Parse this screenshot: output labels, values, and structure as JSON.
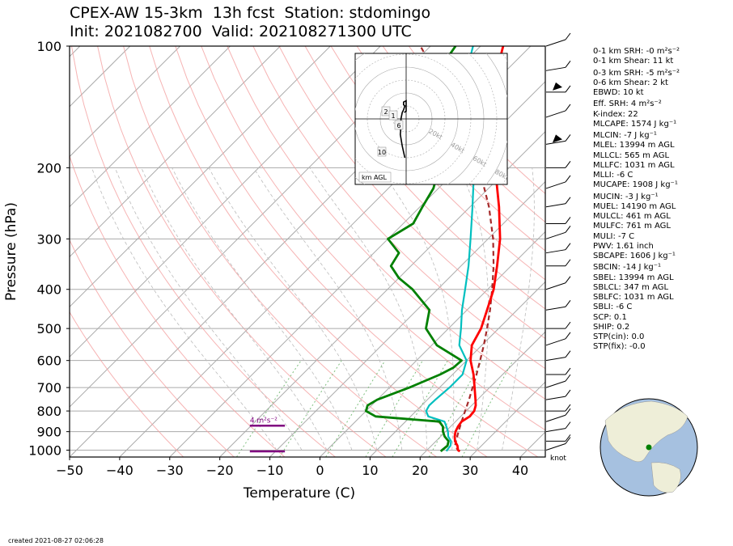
{
  "title_line1": "CPEX-AW 15-3km  13h fcst  Station: stdomingo",
  "title_line2": "Init: 2021082700  Valid: 202108271300 UTC",
  "created": "created 2021-08-27 02:06:28",
  "colors": {
    "temperature": "#ff0000",
    "dewpoint": "#008000",
    "wetbulb": "#00bfbf",
    "parcel": "#a52a2a",
    "srh_marker": "#800080",
    "dry_adiabat": "#f4a0a0",
    "isotherm": "#aaaaaa",
    "mixing_ratio": "#7fbf7f"
  },
  "chart_data": {
    "type": "skew-t",
    "xlabel": "Temperature (C)",
    "ylabel": "Pressure (hPa)",
    "xlim": [
      -50,
      45
    ],
    "ylim": [
      1040,
      100
    ],
    "x_ticks": [
      "−50",
      "−40",
      "−30",
      "−20",
      "−10",
      "0",
      "10",
      "20",
      "30",
      "40"
    ],
    "x_tick_values": [
      -50,
      -40,
      -30,
      -20,
      -10,
      0,
      10,
      20,
      30,
      40
    ],
    "y_ticks": [
      100,
      200,
      300,
      400,
      500,
      600,
      700,
      800,
      900,
      1000
    ],
    "y_log": true,
    "temperature": [
      {
        "p": 1007,
        "t": 26.8
      },
      {
        "p": 1000,
        "t": 26.2
      },
      {
        "p": 975,
        "t": 25.2
      },
      {
        "p": 950,
        "t": 23.8
      },
      {
        "p": 925,
        "t": 22.8
      },
      {
        "p": 900,
        "t": 22.0
      },
      {
        "p": 875,
        "t": 21.5
      },
      {
        "p": 850,
        "t": 21.2
      },
      {
        "p": 825,
        "t": 21.8
      },
      {
        "p": 800,
        "t": 21.6
      },
      {
        "p": 775,
        "t": 20.8
      },
      {
        "p": 750,
        "t": 19.6
      },
      {
        "p": 700,
        "t": 17.0
      },
      {
        "p": 650,
        "t": 14.2
      },
      {
        "p": 600,
        "t": 10.8
      },
      {
        "p": 550,
        "t": 8.0
      },
      {
        "p": 500,
        "t": 6.5
      },
      {
        "p": 450,
        "t": 4.0
      },
      {
        "p": 400,
        "t": 1.2
      },
      {
        "p": 350,
        "t": -2.8
      },
      {
        "p": 300,
        "t": -7.6
      },
      {
        "p": 250,
        "t": -14.2
      },
      {
        "p": 200,
        "t": -22.8
      },
      {
        "p": 150,
        "t": -34.0
      },
      {
        "p": 125,
        "t": -40.0
      },
      {
        "p": 110,
        "t": -43.0
      },
      {
        "p": 100,
        "t": -45.5
      }
    ],
    "dewpoint": [
      {
        "p": 1007,
        "t": 23.0
      },
      {
        "p": 1000,
        "t": 23.0
      },
      {
        "p": 975,
        "t": 23.2
      },
      {
        "p": 950,
        "t": 22.5
      },
      {
        "p": 925,
        "t": 20.8
      },
      {
        "p": 900,
        "t": 19.5
      },
      {
        "p": 875,
        "t": 18.5
      },
      {
        "p": 850,
        "t": 16.8
      },
      {
        "p": 825,
        "t": 3.0
      },
      {
        "p": 800,
        "t": 0.0
      },
      {
        "p": 775,
        "t": -0.8
      },
      {
        "p": 750,
        "t": 0.0
      },
      {
        "p": 700,
        "t": 4.0
      },
      {
        "p": 650,
        "t": 7.5
      },
      {
        "p": 625,
        "t": 8.8
      },
      {
        "p": 600,
        "t": 9.0
      },
      {
        "p": 550,
        "t": 1.0
      },
      {
        "p": 500,
        "t": -4.5
      },
      {
        "p": 450,
        "t": -7.5
      },
      {
        "p": 400,
        "t": -15.0
      },
      {
        "p": 375,
        "t": -20.0
      },
      {
        "p": 350,
        "t": -24.0
      },
      {
        "p": 325,
        "t": -25.0
      },
      {
        "p": 300,
        "t": -30.0
      },
      {
        "p": 275,
        "t": -28.0
      },
      {
        "p": 250,
        "t": -29.5
      },
      {
        "p": 225,
        "t": -31.0
      },
      {
        "p": 200,
        "t": -34.0
      },
      {
        "p": 175,
        "t": -38.5
      },
      {
        "p": 150,
        "t": -47.0
      },
      {
        "p": 125,
        "t": -52.5
      },
      {
        "p": 110,
        "t": -54.0
      },
      {
        "p": 100,
        "t": -55.0
      }
    ],
    "wetbulb": [
      {
        "p": 1007,
        "t": 24.2
      },
      {
        "p": 1000,
        "t": 24.0
      },
      {
        "p": 975,
        "t": 23.8
      },
      {
        "p": 950,
        "t": 23.0
      },
      {
        "p": 925,
        "t": 21.5
      },
      {
        "p": 900,
        "t": 20.5
      },
      {
        "p": 875,
        "t": 19.2
      },
      {
        "p": 850,
        "t": 17.8
      },
      {
        "p": 825,
        "t": 13.5
      },
      {
        "p": 800,
        "t": 12.0
      },
      {
        "p": 775,
        "t": 11.5
      },
      {
        "p": 750,
        "t": 11.6
      },
      {
        "p": 700,
        "t": 12.0
      },
      {
        "p": 650,
        "t": 12.0
      },
      {
        "p": 600,
        "t": 10.0
      },
      {
        "p": 550,
        "t": 5.5
      },
      {
        "p": 500,
        "t": 2.5
      },
      {
        "p": 450,
        "t": -1.0
      },
      {
        "p": 400,
        "t": -4.5
      },
      {
        "p": 350,
        "t": -8.5
      },
      {
        "p": 300,
        "t": -13.5
      },
      {
        "p": 250,
        "t": -19.5
      },
      {
        "p": 200,
        "t": -27.0
      },
      {
        "p": 150,
        "t": -38.0
      },
      {
        "p": 125,
        "t": -45.0
      },
      {
        "p": 110,
        "t": -49.0
      },
      {
        "p": 100,
        "t": -51.5
      }
    ],
    "parcel": [
      {
        "p": 1007,
        "t": 26.8
      },
      {
        "p": 1000,
        "t": 26.2
      },
      {
        "p": 975,
        "t": 24.7
      },
      {
        "p": 950,
        "t": 24.0
      },
      {
        "p": 925,
        "t": 23.3
      },
      {
        "p": 900,
        "t": 22.6
      },
      {
        "p": 850,
        "t": 21.2
      },
      {
        "p": 800,
        "t": 19.8
      },
      {
        "p": 750,
        "t": 18.3
      },
      {
        "p": 700,
        "t": 16.6
      },
      {
        "p": 650,
        "t": 14.8
      },
      {
        "p": 600,
        "t": 12.7
      },
      {
        "p": 550,
        "t": 10.4
      },
      {
        "p": 500,
        "t": 7.7
      },
      {
        "p": 450,
        "t": 4.6
      },
      {
        "p": 400,
        "t": 0.9
      },
      {
        "p": 350,
        "t": -3.5
      },
      {
        "p": 300,
        "t": -9.0
      },
      {
        "p": 250,
        "t": -16.2
      },
      {
        "p": 200,
        "t": -26.0
      },
      {
        "p": 150,
        "t": -40.0
      },
      {
        "p": 100,
        "t": -62.0
      }
    ],
    "surface_labels": {
      "dewpoint": "74",
      "temperature": "79"
    },
    "srh_marker": {
      "label": "4 m²s⁻²",
      "t_range": [
        -14,
        -7
      ],
      "p_levels": [
        870,
        1007
      ]
    },
    "hodograph": {
      "rings": [
        "20kt",
        "40kt",
        "60kt",
        "80kt"
      ],
      "height_labels": [
        "2",
        "1",
        "6",
        "10"
      ],
      "legend": "km AGL",
      "trace": [
        [
          -1,
          -30
        ],
        [
          -3,
          -21
        ],
        [
          -4.5,
          -12
        ],
        [
          -4,
          -6
        ],
        [
          -4,
          0
        ],
        [
          -3,
          5
        ],
        [
          -2,
          7
        ],
        [
          -1,
          10
        ],
        [
          -2,
          11
        ],
        [
          -2,
          13
        ],
        [
          0,
          14
        ],
        [
          0,
          9
        ],
        [
          0,
          6
        ],
        [
          -1.5,
          5
        ]
      ]
    },
    "barbs_unit": "knot"
  },
  "stats": [
    "0-1 km SRH: -0 m²s⁻²",
    "0-1 km Shear: 11 kt",
    "",
    "0-3 km SRH: -5 m²s⁻²",
    "0-6 km Shear: 2 kt",
    "EBWD: 10 kt",
    "",
    "Eff. SRH: 4 m²s⁻²",
    "K-index: 22",
    "MLCAPE: 1574 J kg⁻¹",
    "",
    "MLCIN: -7 J kg⁻¹",
    "MLEL: 13994 m AGL",
    "MLLCL: 565 m AGL",
    "MLLFC: 1031 m AGL",
    "MLLI: -6 C",
    "MUCAPE: 1908 J kg⁻¹",
    "",
    "MUCIN: -3 J kg⁻¹",
    "MUEL: 14190 m AGL",
    "MULCL: 461 m AGL",
    "MULFC: 761 m AGL",
    "MULI: -7 C",
    "PWV: 1.61 inch",
    "SBCAPE: 1606 J kg⁻¹",
    "",
    "SBCIN: -14 J kg⁻¹",
    "SBEL: 13994 m AGL",
    "SBLCL: 347 m AGL",
    "SBLFC: 1031 m AGL",
    "SBLI: -6 C",
    "SCP: 0.1",
    "SHIP: 0.2",
    "STP(cin): 0.0",
    "STP(fix): -0.0"
  ]
}
